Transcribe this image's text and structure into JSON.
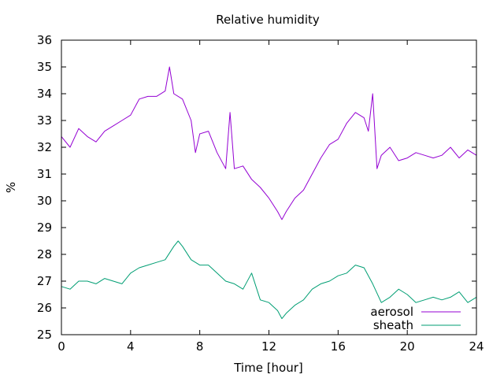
{
  "chart_data": {
    "type": "line",
    "title": "Relative humidity",
    "xlabel": "Time [hour]",
    "ylabel": "%",
    "xlim": [
      0,
      24
    ],
    "ylim": [
      25,
      36
    ],
    "x_ticks": [
      0,
      4,
      8,
      12,
      16,
      20,
      24
    ],
    "y_ticks": [
      25,
      26,
      27,
      28,
      29,
      30,
      31,
      32,
      33,
      34,
      35,
      36
    ],
    "grid": false,
    "legend_position": "bottom-right",
    "series": [
      {
        "name": "aerosol",
        "color": "#9400d3",
        "x": [
          0,
          0.5,
          1,
          1.5,
          2,
          2.5,
          3,
          3.5,
          4,
          4.5,
          5,
          5.5,
          6,
          6.25,
          6.5,
          7,
          7.5,
          7.75,
          8,
          8.5,
          9,
          9.5,
          9.75,
          10,
          10.5,
          11,
          11.5,
          12,
          12.5,
          12.75,
          13,
          13.5,
          14,
          14.5,
          15,
          15.5,
          16,
          16.5,
          17,
          17.5,
          17.75,
          18,
          18.25,
          18.5,
          19,
          19.5,
          20,
          20.5,
          21,
          21.5,
          22,
          22.5,
          23,
          23.5,
          24
        ],
        "values": [
          32.4,
          32.0,
          32.7,
          32.4,
          32.2,
          32.6,
          32.8,
          33.0,
          33.2,
          33.8,
          33.9,
          33.9,
          34.1,
          35.0,
          34.0,
          33.8,
          33.0,
          31.8,
          32.5,
          32.6,
          31.8,
          31.2,
          33.3,
          31.2,
          31.3,
          30.8,
          30.5,
          30.1,
          29.6,
          29.3,
          29.6,
          30.1,
          30.4,
          31.0,
          31.6,
          32.1,
          32.3,
          32.9,
          33.3,
          33.1,
          32.6,
          34.0,
          31.2,
          31.7,
          32.0,
          31.5,
          31.6,
          31.8,
          31.7,
          31.6,
          31.7,
          32.0,
          31.6,
          31.9,
          31.7
        ]
      },
      {
        "name": "sheath",
        "color": "#009e73",
        "x": [
          0,
          0.5,
          1,
          1.5,
          2,
          2.5,
          3,
          3.5,
          4,
          4.5,
          5,
          5.5,
          6,
          6.5,
          6.75,
          7,
          7.5,
          8,
          8.5,
          9,
          9.5,
          10,
          10.5,
          11,
          11.5,
          12,
          12.5,
          12.75,
          13,
          13.5,
          14,
          14.5,
          15,
          15.5,
          16,
          16.5,
          17,
          17.5,
          18,
          18.5,
          19,
          19.5,
          20,
          20.5,
          21,
          21.5,
          22,
          22.5,
          23,
          23.5,
          24
        ],
        "values": [
          26.8,
          26.7,
          27.0,
          27.0,
          26.9,
          27.1,
          27.0,
          26.9,
          27.3,
          27.5,
          27.6,
          27.7,
          27.8,
          28.3,
          28.5,
          28.3,
          27.8,
          27.6,
          27.6,
          27.3,
          27.0,
          26.9,
          26.7,
          27.3,
          26.3,
          26.2,
          25.9,
          25.6,
          25.8,
          26.1,
          26.3,
          26.7,
          26.9,
          27.0,
          27.2,
          27.3,
          27.6,
          27.5,
          26.9,
          26.2,
          26.4,
          26.7,
          26.5,
          26.2,
          26.3,
          26.4,
          26.3,
          26.4,
          26.6,
          26.2,
          26.4
        ]
      }
    ]
  }
}
